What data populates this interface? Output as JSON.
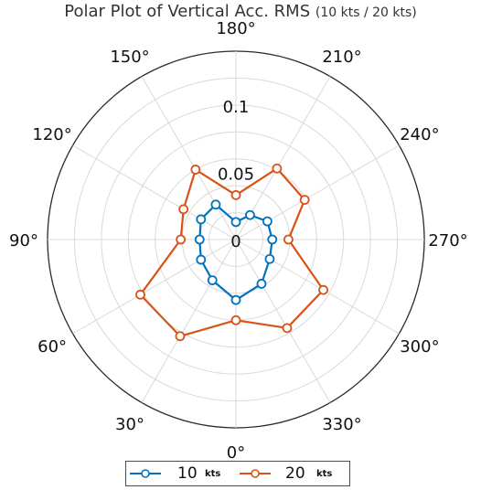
{
  "chart_data": {
    "type": "polar-line",
    "title": "Polar Plot of Vertical Acc. RMS",
    "subtitle": "(10 kts / 20 kts)",
    "r_ticks": [
      "0",
      "0.05",
      "0.1"
    ],
    "r_values": [
      0,
      0.05,
      0.1
    ],
    "rlim": [
      0,
      0.14
    ],
    "theta_tick_values": [
      0,
      30,
      60,
      90,
      120,
      150,
      180,
      210,
      240,
      270,
      300,
      330
    ],
    "theta_ticks": [
      "0°",
      "30°",
      "60°",
      "90°",
      "120°",
      "150°",
      "180°",
      "210°",
      "240°",
      "270°",
      "300°",
      "330°"
    ],
    "theta_zero": "bottom",
    "theta_direction": "clockwise",
    "grid": true,
    "legend_position": "bottom",
    "legend_unit": "kts",
    "series": [
      {
        "name": "10",
        "color": "#0072BD",
        "theta": [
          0,
          30,
          60,
          90,
          120,
          150,
          180,
          210,
          240,
          270,
          300,
          330
        ],
        "r": [
          0.045,
          0.035,
          0.03,
          0.027,
          0.03,
          0.03,
          0.013,
          0.021,
          0.027,
          0.027,
          0.029,
          0.038
        ]
      },
      {
        "name": "20",
        "color": "#D95319",
        "theta": [
          0,
          30,
          60,
          90,
          120,
          150,
          180,
          210,
          240,
          270,
          300,
          330
        ],
        "r": [
          0.06,
          0.083,
          0.082,
          0.041,
          0.045,
          0.06,
          0.033,
          0.061,
          0.059,
          0.039,
          0.075,
          0.076
        ]
      }
    ]
  }
}
